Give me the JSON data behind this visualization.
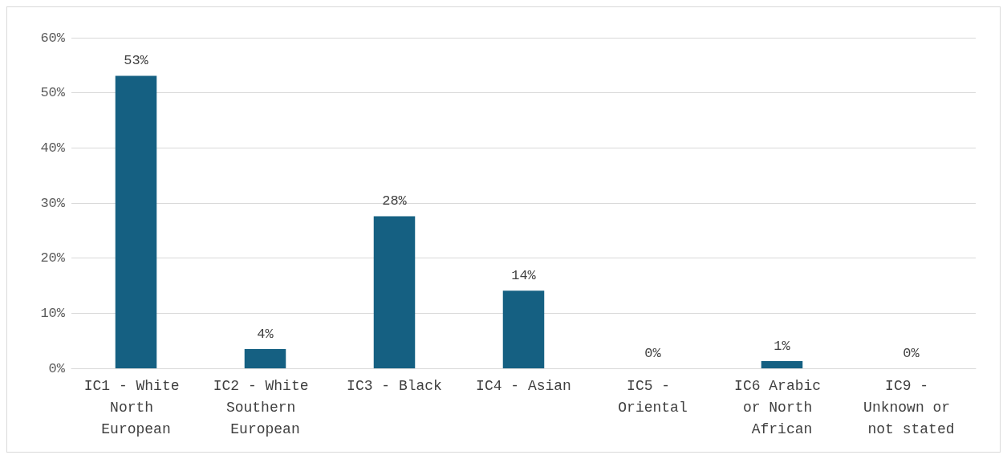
{
  "chart_data": {
    "type": "bar",
    "categories": [
      "IC1 - White North European",
      "IC2 - White Southern European",
      "IC3 - Black",
      "IC4 - Asian",
      "IC5 - Oriental",
      "IC6 Arabic or North African",
      "IC9 - Unknown or not stated"
    ],
    "values": [
      53.1,
      3.5,
      27.6,
      14.1,
      0,
      1.3,
      0
    ],
    "value_labels": [
      "53%",
      "4%",
      "28%",
      "14%",
      "0%",
      "1%",
      "0%"
    ],
    "color": "#156082",
    "ylim": [
      0,
      60
    ],
    "yticks": [
      {
        "value": 0,
        "label": "0%"
      },
      {
        "value": 10,
        "label": "10%"
      },
      {
        "value": 20,
        "label": "20%"
      },
      {
        "value": 30,
        "label": "30%"
      },
      {
        "value": 40,
        "label": "40%"
      },
      {
        "value": 50,
        "label": "50%"
      },
      {
        "value": 60,
        "label": "60%"
      }
    ],
    "grid": "y"
  }
}
